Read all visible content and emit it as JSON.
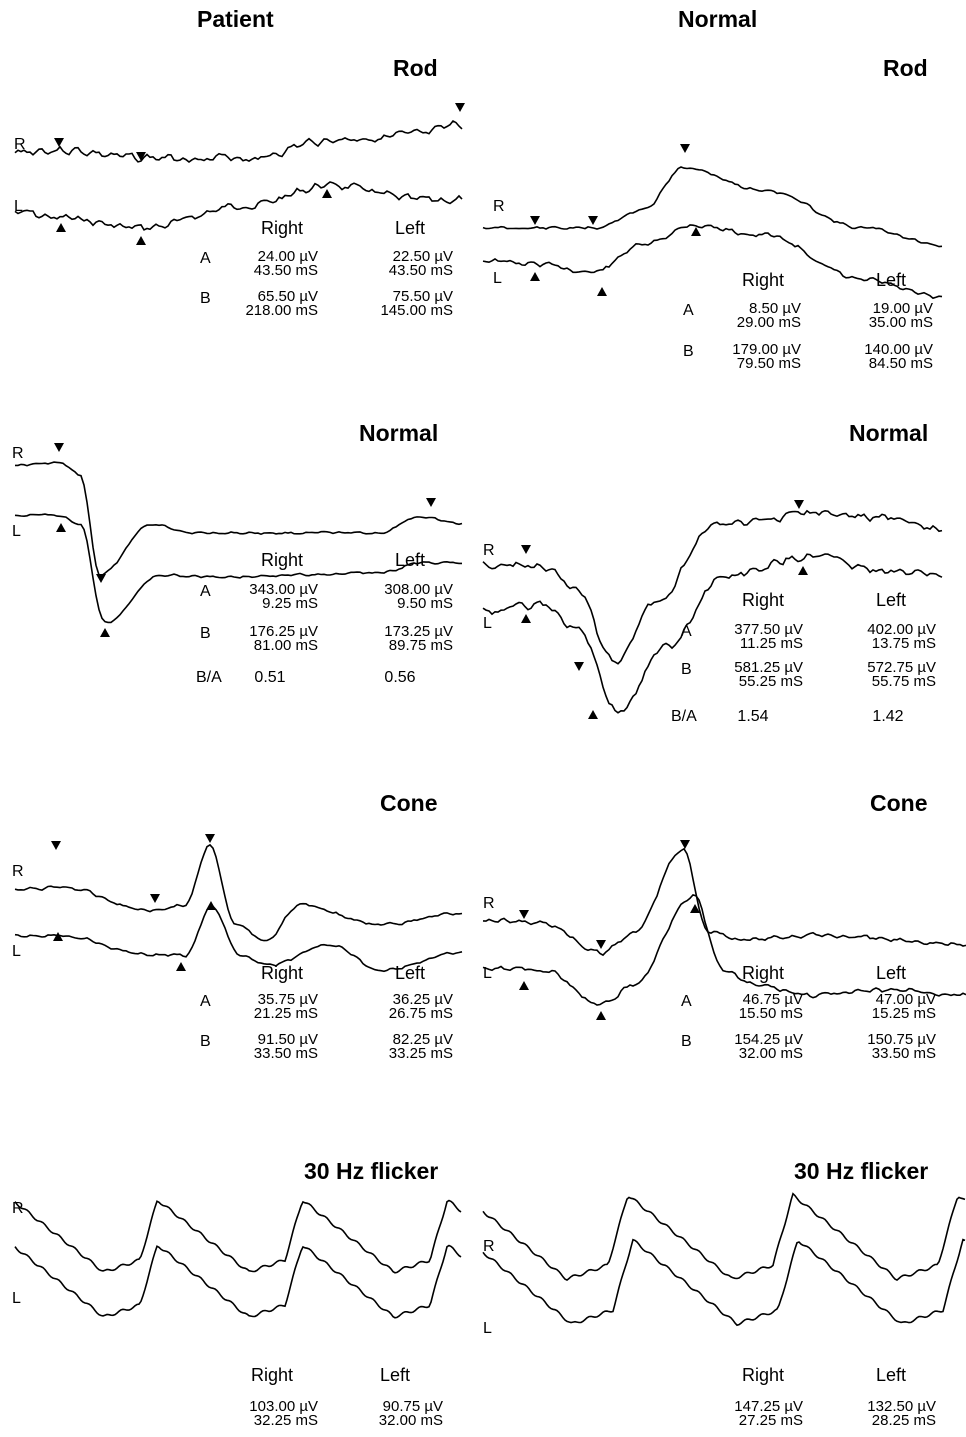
{
  "columns": {
    "patient": "Patient",
    "normal": "Normal"
  },
  "eye_labels": {
    "right": "R",
    "left": "L"
  },
  "table_headers": {
    "right": "Right",
    "left": "Left"
  },
  "row_labels": {
    "a": "A",
    "b": "B",
    "ratio": "B/A"
  },
  "panels": [
    {
      "column": "patient",
      "title": "Rod",
      "type": "rod",
      "right": {
        "a_amp": "24.00 µV",
        "a_time": "43.50 mS",
        "b_amp": "65.50 µV",
        "b_time": "218.00 mS"
      },
      "left": {
        "a_amp": "22.50 µV",
        "a_time": "43.50 mS",
        "b_amp": "75.50 µV",
        "b_time": "145.00 mS"
      }
    },
    {
      "column": "normal",
      "title": "Rod",
      "type": "rod_normal",
      "right": {
        "a_amp": "8.50 µV",
        "a_time": "29.00 mS",
        "b_amp": "179.00 µV",
        "b_time": "79.50 mS"
      },
      "left": {
        "a_amp": "19.00 µV",
        "a_time": "35.00 mS",
        "b_amp": "140.00 µV",
        "b_time": "84.50 mS"
      }
    },
    {
      "column": "patient",
      "title": "Normal",
      "type": "mixed",
      "right": {
        "a_amp": "343.00 µV",
        "a_time": "9.25 mS",
        "b_amp": "176.25 µV",
        "b_time": "81.00 mS",
        "ratio": "0.51"
      },
      "left": {
        "a_amp": "308.00 µV",
        "a_time": "9.50 mS",
        "b_amp": "173.25 µV",
        "b_time": "89.75 mS",
        "ratio": "0.56"
      }
    },
    {
      "column": "normal",
      "title": "Normal",
      "type": "mixed_normal",
      "right": {
        "a_amp": "377.50 µV",
        "a_time": "11.25 mS",
        "b_amp": "581.25 µV",
        "b_time": "55.25 mS",
        "ratio": "1.54"
      },
      "left": {
        "a_amp": "402.00 µV",
        "a_time": "13.75 mS",
        "b_amp": "572.75 µV",
        "b_time": "55.75 mS",
        "ratio": "1.42"
      }
    },
    {
      "column": "patient",
      "title": "Cone",
      "type": "cone",
      "right": {
        "a_amp": "35.75 µV",
        "a_time": "21.25 mS",
        "b_amp": "91.50 µV",
        "b_time": "33.50 mS"
      },
      "left": {
        "a_amp": "36.25 µV",
        "a_time": "26.75 mS",
        "b_amp": "82.25 µV",
        "b_time": "33.25 mS"
      }
    },
    {
      "column": "normal",
      "title": "Cone",
      "type": "cone_normal",
      "right": {
        "a_amp": "46.75 µV",
        "a_time": "15.50 mS",
        "b_amp": "154.25 µV",
        "b_time": "32.00 mS"
      },
      "left": {
        "a_amp": "47.00 µV",
        "a_time": "15.25 mS",
        "b_amp": "150.75 µV",
        "b_time": "33.50 mS"
      }
    },
    {
      "column": "patient",
      "title": "30 Hz flicker",
      "type": "flicker",
      "right": {
        "amp": "103.00 µV",
        "time": "32.25 mS"
      },
      "left": {
        "amp": "90.75 µV",
        "time": "32.00 mS"
      }
    },
    {
      "column": "normal",
      "title": "30 Hz flicker",
      "type": "flicker_normal",
      "right": {
        "amp": "147.25 µV",
        "time": "27.25 mS"
      },
      "left": {
        "amp": "132.50 µV",
        "time": "28.25 mS"
      }
    }
  ],
  "chart_data": [
    {
      "type": "line",
      "title": "Rod",
      "group": "Patient",
      "series": [
        {
          "name": "R",
          "a": [
            "24.00 µV",
            "43.50 mS"
          ],
          "b": [
            "65.50 µV",
            "218.00 mS"
          ]
        },
        {
          "name": "L",
          "a": [
            "22.50 µV",
            "43.50 mS"
          ],
          "b": [
            "75.50 µV",
            "145.00 mS"
          ]
        }
      ]
    },
    {
      "type": "line",
      "title": "Rod",
      "group": "Normal",
      "series": [
        {
          "name": "R",
          "a": [
            "8.50 µV",
            "29.00 mS"
          ],
          "b": [
            "179.00 µV",
            "79.50 mS"
          ]
        },
        {
          "name": "L",
          "a": [
            "19.00 µV",
            "35.00 mS"
          ],
          "b": [
            "140.00 µV",
            "84.50 mS"
          ]
        }
      ]
    },
    {
      "type": "line",
      "title": "Normal",
      "group": "Patient",
      "series": [
        {
          "name": "R",
          "a": [
            "343.00 µV",
            "9.25 mS"
          ],
          "b": [
            "176.25 µV",
            "81.00 mS"
          ],
          "b_a": 0.51
        },
        {
          "name": "L",
          "a": [
            "308.00 µV",
            "9.50 mS"
          ],
          "b": [
            "173.25 µV",
            "89.75 mS"
          ],
          "b_a": 0.56
        }
      ]
    },
    {
      "type": "line",
      "title": "Normal",
      "group": "Normal",
      "series": [
        {
          "name": "R",
          "a": [
            "377.50 µV",
            "11.25 mS"
          ],
          "b": [
            "581.25 µV",
            "55.25 mS"
          ],
          "b_a": 1.54
        },
        {
          "name": "L",
          "a": [
            "402.00 µV",
            "13.75 mS"
          ],
          "b": [
            "572.75 µV",
            "55.75 mS"
          ],
          "b_a": 1.42
        }
      ]
    },
    {
      "type": "line",
      "title": "Cone",
      "group": "Patient",
      "series": [
        {
          "name": "R",
          "a": [
            "35.75 µV",
            "21.25 mS"
          ],
          "b": [
            "91.50 µV",
            "33.50 mS"
          ]
        },
        {
          "name": "L",
          "a": [
            "36.25 µV",
            "26.75 mS"
          ],
          "b": [
            "82.25 µV",
            "33.25 mS"
          ]
        }
      ]
    },
    {
      "type": "line",
      "title": "Cone",
      "group": "Normal",
      "series": [
        {
          "name": "R",
          "a": [
            "46.75 µV",
            "15.50 mS"
          ],
          "b": [
            "154.25 µV",
            "32.00 mS"
          ]
        },
        {
          "name": "L",
          "a": [
            "47.00 µV",
            "15.25 mS"
          ],
          "b": [
            "150.75 µV",
            "33.50 mS"
          ]
        }
      ]
    },
    {
      "type": "line",
      "title": "30 Hz flicker",
      "group": "Patient",
      "series": [
        {
          "name": "R",
          "amplitude": "103.00 µV",
          "time": "32.25 mS"
        },
        {
          "name": "L",
          "amplitude": "90.75 µV",
          "time": "32.00 mS"
        }
      ]
    },
    {
      "type": "line",
      "title": "30 Hz flicker",
      "group": "Normal",
      "series": [
        {
          "name": "R",
          "amplitude": "147.25 µV",
          "time": "27.25 mS"
        },
        {
          "name": "L",
          "amplitude": "132.50 µV",
          "time": "28.25 mS"
        }
      ]
    }
  ]
}
